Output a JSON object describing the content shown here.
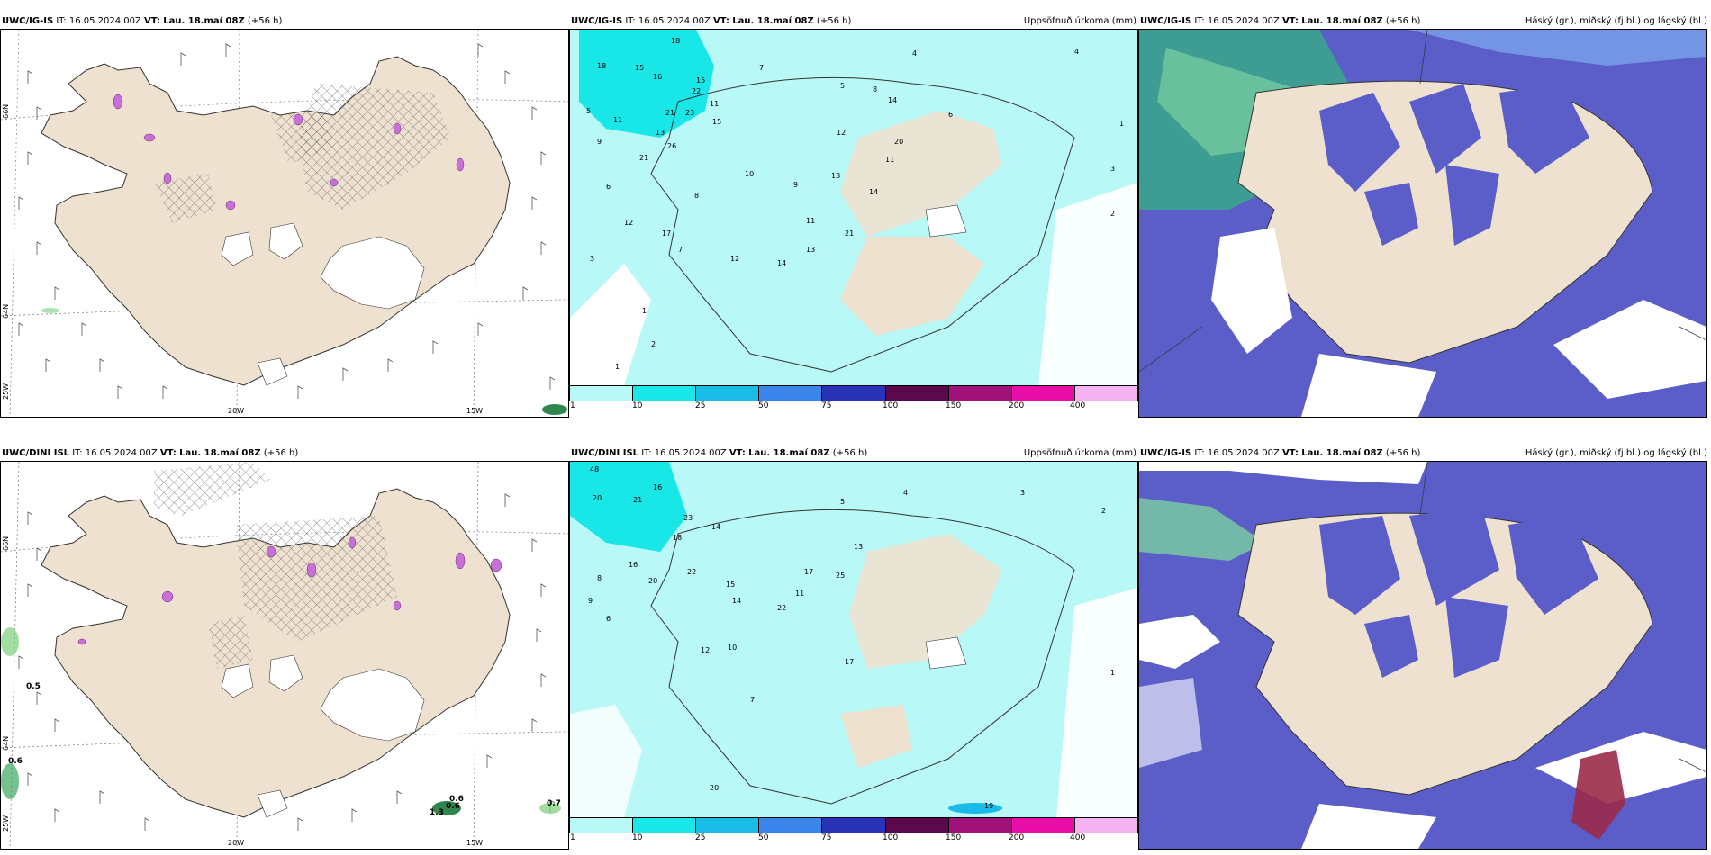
{
  "rows": [
    {
      "wind": {
        "model": "UWC/IG-IS",
        "it": "16.05.2024 00Z",
        "vt_label": "VT:",
        "vt": "Lau. 18.maí 08Z",
        "lead": "(+56 h)"
      },
      "precip": {
        "model": "UWC/IG-IS",
        "it": "16.05.2024 00Z",
        "vt_label": "VT:",
        "vt": "Lau. 18.maí 08Z",
        "lead": "(+56 h)",
        "field": "Uppsöfnuð úrkoma (mm)"
      },
      "cloud": {
        "model": "UWC/IG-IS",
        "it": "16.05.2024 00Z",
        "vt_label": "VT:",
        "vt": "Lau. 18.maí 08Z",
        "lead": "(+56 h)",
        "field": "Háský (gr.), miðský (fj.bl.) og lágský (bl.)"
      }
    },
    {
      "wind": {
        "model": "UWC/DINI ISL",
        "it": "16.05.2024 00Z",
        "vt_label": "VT:",
        "vt": "Lau. 18.maí 08Z",
        "lead": "(+56 h)"
      },
      "precip": {
        "model": "UWC/DINI ISL",
        "it": "16.05.2024 00Z",
        "vt_label": "VT:",
        "vt": "Lau. 18.maí 08Z",
        "lead": "(+56 h)",
        "field": "Uppsöfnuð úrkoma (mm)"
      },
      "cloud": {
        "model": "UWC/IG-IS",
        "it": "16.05.2024 00Z",
        "vt_label": "VT:",
        "vt": "Lau. 18.maí 08Z",
        "lead": "(+56 h)",
        "field": "Háský (gr.), miðský (fj.bl.) og lágský (bl.)"
      }
    }
  ],
  "axis_labels": {
    "lat66": "66N",
    "lat64": "64N",
    "lon25": "25W",
    "lon20": "20W",
    "lon15": "15W"
  },
  "wind_values_bottom": [
    "0.5",
    "0.6",
    "0.6",
    "0.6",
    "1.3",
    "0.7"
  ],
  "precip_colorbar": {
    "ticks": [
      "1",
      "10",
      "25",
      "50",
      "75",
      "100",
      "150",
      "200",
      "400"
    ],
    "colors": [
      "#b8f8f6",
      "#19e6e6",
      "#1bbbe8",
      "#3a86ea",
      "#2933b8",
      "#5a0a4a",
      "#a0127a",
      "#e90ea8",
      "#f5b2f0"
    ]
  },
  "precip_numbers_top": [
    "18",
    "15",
    "18",
    "16",
    "15",
    "22",
    "23",
    "11",
    "21",
    "15",
    "11",
    "9",
    "7",
    "4",
    "5",
    "8",
    "14",
    "12",
    "10",
    "26",
    "13",
    "21",
    "20",
    "6",
    "11",
    "8",
    "12",
    "9",
    "17",
    "13",
    "14",
    "11",
    "21",
    "13",
    "14",
    "12",
    "4",
    "3",
    "2",
    "1",
    "5",
    "6",
    "7",
    "1",
    "2",
    "3",
    "1"
  ],
  "precip_numbers_bottom": [
    "48",
    "20",
    "21",
    "16",
    "22",
    "23",
    "14",
    "17",
    "25",
    "18",
    "20",
    "16",
    "15",
    "13",
    "14",
    "22",
    "11",
    "12",
    "10",
    "9",
    "8",
    "7",
    "6",
    "5",
    "4",
    "3",
    "2",
    "1",
    "19",
    "20",
    "17"
  ],
  "colors": {
    "land": "#efe1d0",
    "sea_light": "#b8f8f6",
    "cloud_dark": "#5b5dc8",
    "cloud_mid": "#7aa4ea",
    "cloud_high": "#3aa88a",
    "hatch": "#555555",
    "purple": "#c870d8"
  }
}
